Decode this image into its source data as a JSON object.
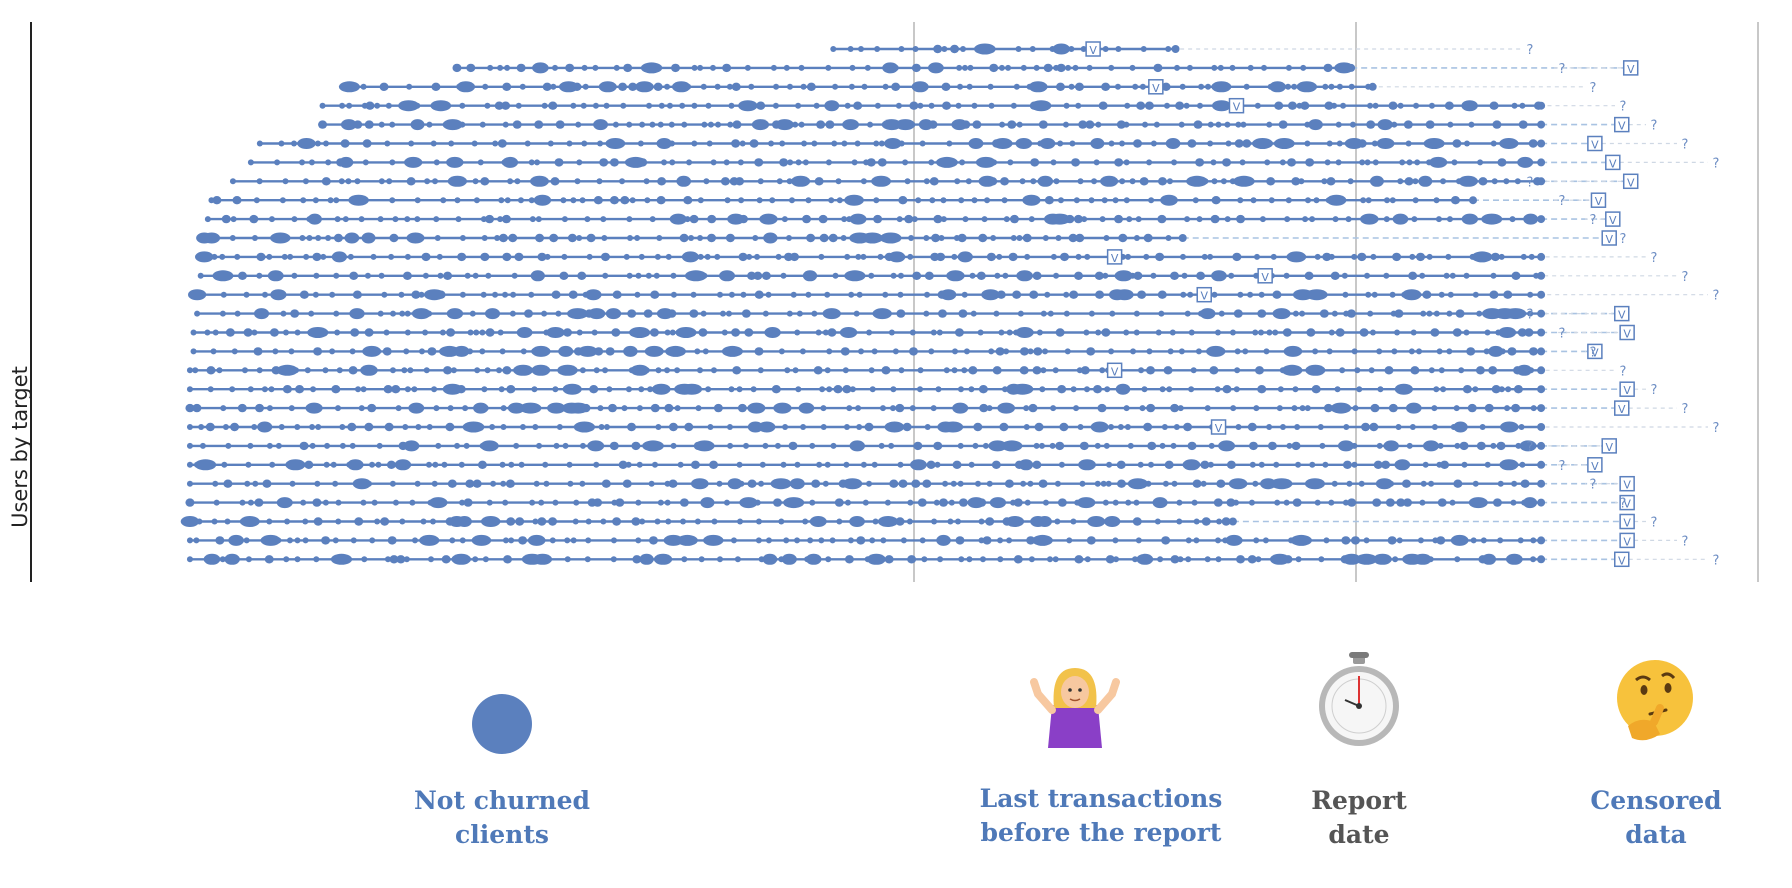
{
  "axis": {
    "ylabel": "Users by target"
  },
  "legend": [
    {
      "id": "not-churned",
      "label": "Not churned\nclients",
      "icon": "filled-circle",
      "color": "#5b80be"
    },
    {
      "id": "last-tx",
      "label": "Last transactions\nbefore the report",
      "icon": "shrugging-person-icon",
      "color": "#4f79b8"
    },
    {
      "id": "report-date",
      "label": "Report\ndate",
      "icon": "stopwatch-icon",
      "color": "#555555"
    },
    {
      "id": "censored",
      "label": "Censored\ndata",
      "icon": "thinking-face-icon",
      "color": "#4f79b8"
    }
  ],
  "markers": {
    "last_transaction": "V",
    "censored": "?"
  },
  "colors": {
    "series": "#5b80be",
    "dashed": "#a9c3e2",
    "report_line": "#c8c8c8",
    "axis": "#222222"
  },
  "rows": [
    {
      "first": 0.465,
      "solid_end": 0.656,
      "last_tx": 0.61,
      "q": 0
    },
    {
      "first": 0.255,
      "solid_end": 0.754,
      "last_tx": 0.91,
      "q": 1
    },
    {
      "first": 0.195,
      "solid_end": 0.766,
      "last_tx": 0.645,
      "q": 2
    },
    {
      "first": 0.18,
      "solid_end": 0.86,
      "last_tx": 0.69,
      "q": 3
    },
    {
      "first": 0.18,
      "solid_end": 0.86,
      "last_tx": 0.905,
      "q": 4
    },
    {
      "first": 0.145,
      "solid_end": 0.86,
      "last_tx": 0.89,
      "q": 5
    },
    {
      "first": 0.14,
      "solid_end": 0.86,
      "last_tx": 0.9,
      "q": 6
    },
    {
      "first": 0.13,
      "solid_end": 0.86,
      "last_tx": 0.91,
      "q": 0
    },
    {
      "first": 0.118,
      "solid_end": 0.822,
      "last_tx": 0.892,
      "q": 1
    },
    {
      "first": 0.116,
      "solid_end": 0.86,
      "last_tx": 0.9,
      "q": 2
    },
    {
      "first": 0.114,
      "solid_end": 0.66,
      "last_tx": 0.898,
      "q": 3
    },
    {
      "first": 0.114,
      "solid_end": 0.86,
      "last_tx": 0.622,
      "q": 4
    },
    {
      "first": 0.112,
      "solid_end": 0.86,
      "last_tx": 0.706,
      "q": 5
    },
    {
      "first": 0.11,
      "solid_end": 0.86,
      "last_tx": 0.672,
      "q": 6
    },
    {
      "first": 0.11,
      "solid_end": 0.86,
      "last_tx": 0.905,
      "q": 0
    },
    {
      "first": 0.108,
      "solid_end": 0.86,
      "last_tx": 0.908,
      "q": 1
    },
    {
      "first": 0.108,
      "solid_end": 0.86,
      "last_tx": 0.89,
      "q": 2
    },
    {
      "first": 0.106,
      "solid_end": 0.86,
      "last_tx": 0.622,
      "q": 3
    },
    {
      "first": 0.106,
      "solid_end": 0.86,
      "last_tx": 0.908,
      "q": 4
    },
    {
      "first": 0.106,
      "solid_end": 0.86,
      "last_tx": 0.905,
      "q": 5
    },
    {
      "first": 0.106,
      "solid_end": 0.86,
      "last_tx": 0.68,
      "q": 6
    },
    {
      "first": 0.106,
      "solid_end": 0.86,
      "last_tx": 0.898,
      "q": 0
    },
    {
      "first": 0.106,
      "solid_end": 0.86,
      "last_tx": 0.89,
      "q": 1
    },
    {
      "first": 0.106,
      "solid_end": 0.86,
      "last_tx": 0.908,
      "q": 2
    },
    {
      "first": 0.106,
      "solid_end": 0.86,
      "last_tx": 0.908,
      "q": 3
    },
    {
      "first": 0.106,
      "solid_end": 0.688,
      "last_tx": 0.908,
      "q": 4
    },
    {
      "first": 0.106,
      "solid_end": 0.86,
      "last_tx": 0.908,
      "q": 5
    },
    {
      "first": 0.106,
      "solid_end": 0.86,
      "last_tx": 0.905,
      "q": 6
    }
  ]
}
